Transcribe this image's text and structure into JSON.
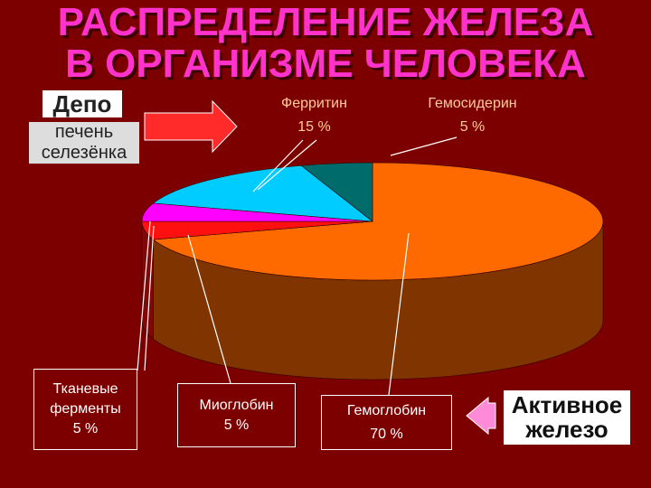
{
  "chart_data": {
    "type": "pie",
    "title": "РАСПРЕДЕЛЕНИЕ ЖЕЛЕЗА\nВ ОРГАНИЗМЕ ЧЕЛОВЕКА",
    "categories": [
      "Гемоглобин",
      "Тканевые ферменты",
      "Миоглобин",
      "Ферритин",
      "Гемосидерин"
    ],
    "values": [
      70,
      5,
      5,
      15,
      5
    ],
    "value_labels": [
      "70 %",
      "5 %",
      "5 %",
      "15 %",
      "5 %"
    ],
    "colors": [
      "#ff6a00",
      "#ff1010",
      "#ff00ff",
      "#00ccff",
      "#006b6b"
    ],
    "depot_title": "Депо",
    "depot_organs": "печень\nселезёнка",
    "active_label": "Активное\nжелезо"
  }
}
